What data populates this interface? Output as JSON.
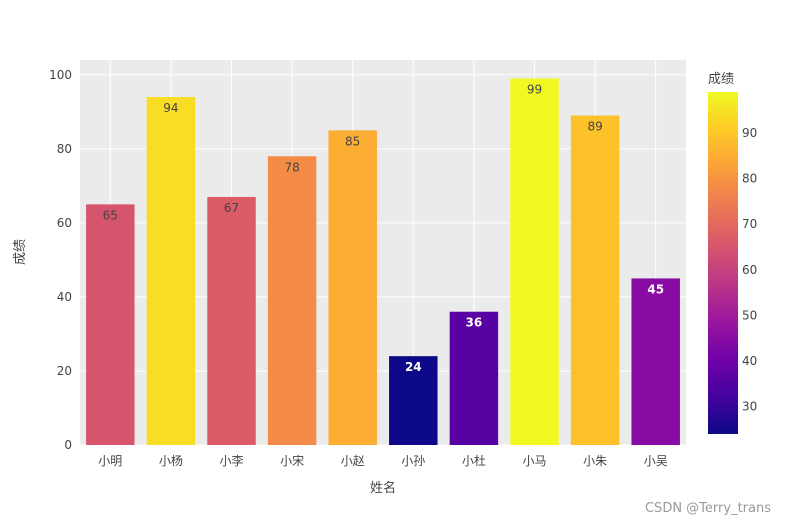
{
  "chart_data": {
    "type": "bar",
    "categories": [
      "小明",
      "小杨",
      "小李",
      "小宋",
      "小赵",
      "小孙",
      "小杜",
      "小马",
      "小朱",
      "小吴"
    ],
    "values": [
      65,
      94,
      67,
      78,
      85,
      24,
      36,
      99,
      89,
      45
    ],
    "data_labels": [
      "65",
      "94",
      "67",
      "78",
      "85",
      "24",
      "36",
      "99",
      "89",
      "45"
    ],
    "xlabel": "姓名",
    "ylabel": "成绩",
    "ylim": [
      0,
      104
    ],
    "yticks": [
      0,
      20,
      40,
      60,
      80,
      100
    ],
    "grid": true,
    "colorbar": {
      "title": "成绩",
      "range": [
        24,
        99
      ],
      "ticks": [
        30,
        40,
        50,
        60,
        70,
        80,
        90
      ],
      "colorscale": "plasma",
      "placement": "right"
    },
    "colors": {
      "plot_bg": "#ebebeb",
      "grid": "#ffffff"
    }
  },
  "watermark": "CSDN @Terry_trans"
}
